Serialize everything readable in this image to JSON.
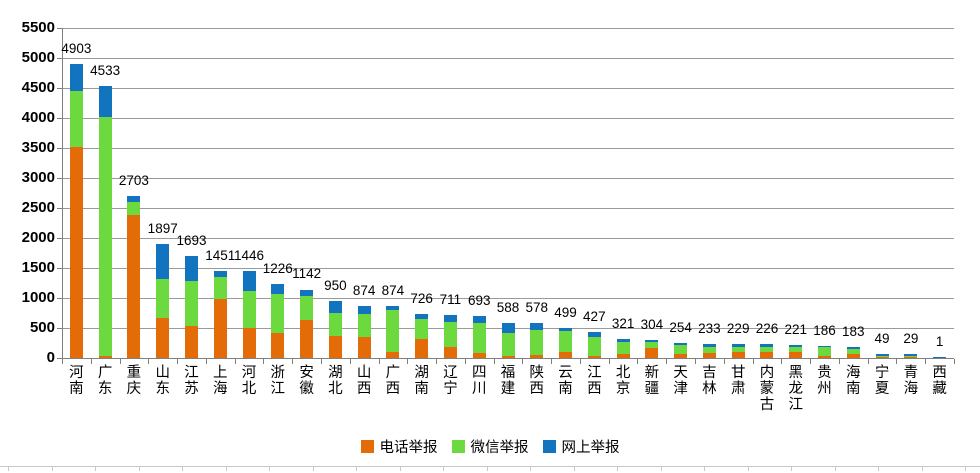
{
  "chart_data": {
    "type": "bar",
    "stacked": true,
    "title": "",
    "categories": [
      "河南",
      "广东",
      "重庆",
      "山东",
      "江苏",
      "上海",
      "河北",
      "浙江",
      "安徽",
      "湖北",
      "山西",
      "广西",
      "湖南",
      "辽宁",
      "四川",
      "福建",
      "陕西",
      "云南",
      "江西",
      "北京",
      "新疆",
      "天津",
      "吉林",
      "甘肃",
      "内蒙古",
      "黑龙江",
      "贵州",
      "海南",
      "宁夏",
      "青海",
      "西藏"
    ],
    "totals": [
      4903,
      4533,
      2703,
      1897,
      1693,
      1451,
      1446,
      1226,
      1142,
      950,
      874,
      874,
      726,
      711,
      693,
      588,
      578,
      499,
      427,
      321,
      304,
      254,
      233,
      229,
      226,
      221,
      186,
      183,
      49,
      29,
      1
    ],
    "series": [
      {
        "name": "电话举报",
        "color": "#E36C09",
        "values": [
          3510,
          30,
          2380,
          665,
          535,
          985,
          495,
          410,
          640,
          365,
          355,
          105,
          310,
          178,
          90,
          35,
          50,
          95,
          30,
          70,
          175,
          60,
          90,
          95,
          100,
          100,
          30,
          75,
          10,
          5,
          0
        ]
      },
      {
        "name": "微信举报",
        "color": "#6CD93F",
        "values": [
          945,
          3980,
          225,
          650,
          755,
          370,
          620,
          655,
          400,
          390,
          380,
          695,
          335,
          427,
          490,
          377,
          417,
          360,
          315,
          200,
          95,
          150,
          100,
          85,
          81,
          78,
          150,
          80,
          20,
          20,
          0
        ]
      },
      {
        "name": "网上举报",
        "color": "#1274BE",
        "values": [
          448,
          523,
          98,
          582,
          403,
          96,
          331,
          161,
          102,
          195,
          139,
          74,
          81,
          106,
          113,
          176,
          111,
          44,
          82,
          51,
          34,
          44,
          43,
          49,
          45,
          43,
          6,
          28,
          19,
          4,
          1
        ]
      }
    ],
    "y_axis": {
      "min": 0,
      "max": 5500,
      "step": 500,
      "tick_labels": [
        "0",
        "500",
        "1000",
        "1500",
        "2000",
        "2500",
        "3000",
        "3500",
        "4000",
        "4500",
        "5000",
        "5500"
      ]
    },
    "legend_position": "bottom",
    "grid": true
  }
}
